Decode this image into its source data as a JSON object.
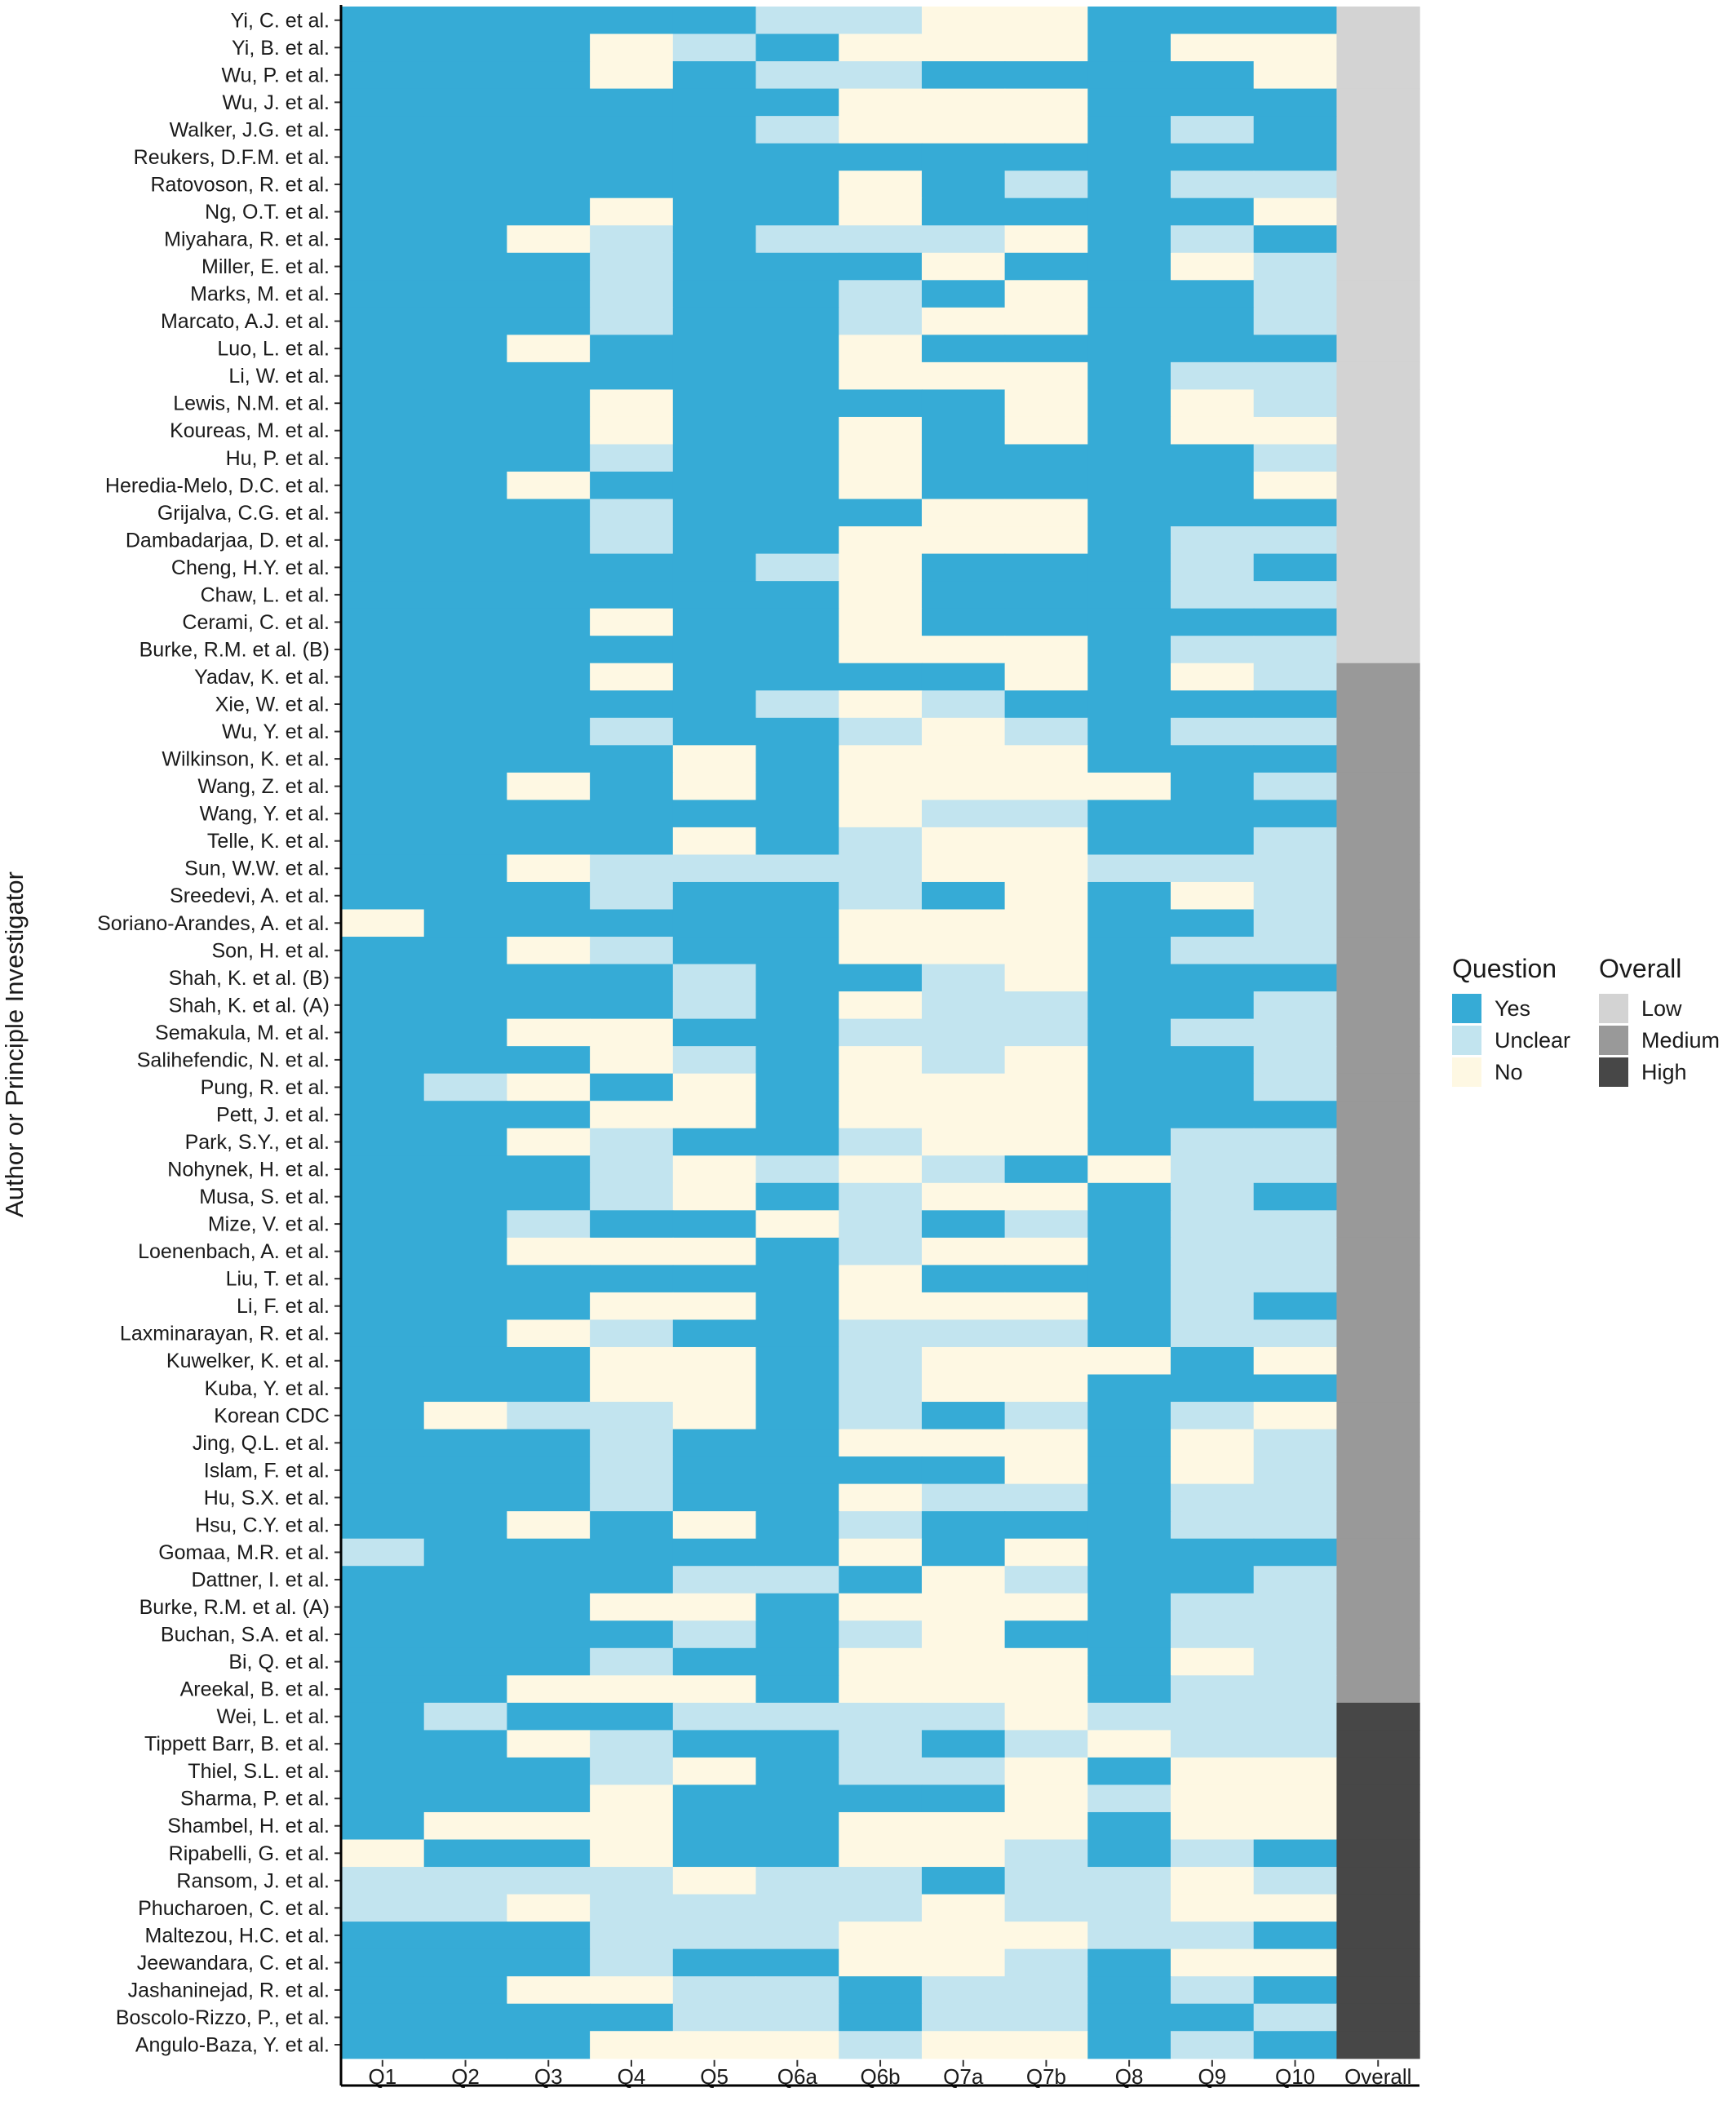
{
  "chart_data": {
    "type": "heatmap",
    "ylabel": "Author or Principle Investigator",
    "columns": [
      "Q1",
      "Q2",
      "Q3",
      "Q4",
      "Q5",
      "Q6a",
      "Q6b",
      "Q7a",
      "Q7b",
      "Q8",
      "Q9",
      "Q10",
      "Overall"
    ],
    "legend": {
      "question_title": "Question",
      "question_levels": [
        {
          "key": "Y",
          "label": "Yes",
          "color": "#36ABD6"
        },
        {
          "key": "U",
          "label": "Unclear",
          "color": "#C2E4EF"
        },
        {
          "key": "N",
          "label": "No",
          "color": "#FEF8E3"
        }
      ],
      "overall_title": "Overall",
      "overall_levels": [
        {
          "key": "L",
          "label": "Low",
          "color": "#D3D3D3"
        },
        {
          "key": "M",
          "label": "Medium",
          "color": "#999999"
        },
        {
          "key": "H",
          "label": "High",
          "color": "#474747"
        }
      ]
    },
    "rows": [
      {
        "label": "Yi, C. et al.",
        "values": "YYYYYUUNNYYY",
        "overall": "L"
      },
      {
        "label": "Yi, B. et al.",
        "values": "YYYNUYNNNYNN",
        "overall": "L"
      },
      {
        "label": "Wu, P. et al.",
        "values": "YYYNYUUYYYYN",
        "overall": "L"
      },
      {
        "label": "Wu, J. et al.",
        "values": "YYYYYYNNNYYY",
        "overall": "L"
      },
      {
        "label": "Walker, J.G. et al.",
        "values": "YYYYYUNNNYUY",
        "overall": "L"
      },
      {
        "label": "Reukers, D.F.M. et al.",
        "values": "YYYYYYYYYYYY",
        "overall": "L"
      },
      {
        "label": "Ratovoson, R. et al.",
        "values": "YYYYYYNYUYUU",
        "overall": "L"
      },
      {
        "label": "Ng, O.T. et al.",
        "values": "YYYNYYNYYYYN",
        "overall": "L"
      },
      {
        "label": "Miyahara, R. et al.",
        "values": "YYNUYUUUNYUY",
        "overall": "L"
      },
      {
        "label": "Miller, E. et al.",
        "values": "YYYUYYYNYYNU",
        "overall": "L"
      },
      {
        "label": "Marks, M. et al.",
        "values": "YYYUYYUYNYYU",
        "overall": "L"
      },
      {
        "label": "Marcato, A.J. et al.",
        "values": "YYYUYYUNNYYU",
        "overall": "L"
      },
      {
        "label": "Luo, L. et al.",
        "values": "YYNYYYNYYYYY",
        "overall": "L"
      },
      {
        "label": "Li, W. et al.",
        "values": "YYYYYYNNNYUU",
        "overall": "L"
      },
      {
        "label": "Lewis, N.M. et al.",
        "values": "YYYNYYYYNYNU",
        "overall": "L"
      },
      {
        "label": "Koureas, M. et al.",
        "values": "YYYNYYNYNYNN",
        "overall": "L"
      },
      {
        "label": "Hu, P. et al.",
        "values": "YYYUYYNYYYYU",
        "overall": "L"
      },
      {
        "label": "Heredia-Melo, D.C. et al.",
        "values": "YYNYYYNYYYYN",
        "overall": "L"
      },
      {
        "label": "Grijalva, C.G. et al.",
        "values": "YYYUYYYNNYYY",
        "overall": "L"
      },
      {
        "label": "Dambadarjaa, D. et al.",
        "values": "YYYUYYNNNYUU",
        "overall": "L"
      },
      {
        "label": "Cheng, H.Y. et al.",
        "values": "YYYYYUNYYYUY",
        "overall": "L"
      },
      {
        "label": "Chaw, L. et al.",
        "values": "YYYYYYNYYYUU",
        "overall": "L"
      },
      {
        "label": "Cerami, C. et al.",
        "values": "YYYNYYNYYYYY",
        "overall": "L"
      },
      {
        "label": "Burke, R.M. et al. (B)",
        "values": "YYYYYYNNNYUU",
        "overall": "L"
      },
      {
        "label": "Yadav, K. et al.",
        "values": "YYYNYYYYNYNU",
        "overall": "M"
      },
      {
        "label": "Xie, W. et al.",
        "values": "YYYYYUNUYYYY",
        "overall": "M"
      },
      {
        "label": "Wu, Y. et al.",
        "values": "YYYUYYUNUYUU",
        "overall": "M"
      },
      {
        "label": "Wilkinson, K. et al.",
        "values": "YYYYNYNNNYYY",
        "overall": "M"
      },
      {
        "label": "Wang, Z. et al.",
        "values": "YYNYNYNNNNYU",
        "overall": "M"
      },
      {
        "label": "Wang, Y. et al.",
        "values": "YYYYYYNUUYYY",
        "overall": "M"
      },
      {
        "label": "Telle, K. et al.",
        "values": "YYYYNYUNNYYU",
        "overall": "M"
      },
      {
        "label": "Sun, W.W. et al.",
        "values": "YYNUUUUNNUUU",
        "overall": "M"
      },
      {
        "label": "Sreedevi, A. et al.",
        "values": "YYYUYYUYNYNU",
        "overall": "M"
      },
      {
        "label": "Soriano-Arandes, A. et al.",
        "values": "NYYYYYNNNYYU",
        "overall": "M"
      },
      {
        "label": "Son, H. et al.",
        "values": "YYNUYYNNNYUU",
        "overall": "M"
      },
      {
        "label": "Shah, K. et al. (B)",
        "values": "YYYYUYYUNYYY",
        "overall": "M"
      },
      {
        "label": "Shah, K. et al. (A)",
        "values": "YYYYUYNUUYYU",
        "overall": "M"
      },
      {
        "label": "Semakula, M. et al.",
        "values": "YYNNYYUUUYUU",
        "overall": "M"
      },
      {
        "label": "Salihefendic, N. et al.",
        "values": "YYYNUYNUNYYU",
        "overall": "M"
      },
      {
        "label": "Pung, R. et al.",
        "values": "YUNYNYNNNYYU",
        "overall": "M"
      },
      {
        "label": "Pett, J. et al.",
        "values": "YYYNNYNNNYYY",
        "overall": "M"
      },
      {
        "label": "Park, S.Y., et al.",
        "values": "YYNUYYUNNYUU",
        "overall": "M"
      },
      {
        "label": "Nohynek, H. et al.",
        "values": "YYYUNUNUYNUU",
        "overall": "M"
      },
      {
        "label": "Musa, S. et al.",
        "values": "YYYUNYUNNYUY",
        "overall": "M"
      },
      {
        "label": "Mize, V. et al.",
        "values": "YYUYYNUYUYUU",
        "overall": "M"
      },
      {
        "label": "Loenenbach, A. et al.",
        "values": "YYNNNYUNNYUU",
        "overall": "M"
      },
      {
        "label": "Liu, T. et al.",
        "values": "YYYYYYNYYYUU",
        "overall": "M"
      },
      {
        "label": "Li, F. et al.",
        "values": "YYYNNYNNNYUY",
        "overall": "M"
      },
      {
        "label": "Laxminarayan, R. et al.",
        "values": "YYNUYYUUUYUU",
        "overall": "M"
      },
      {
        "label": "Kuwelker, K. et al.",
        "values": "YYYNNYUNNNYN",
        "overall": "M"
      },
      {
        "label": "Kuba, Y. et al.",
        "values": "YYYNNYUNNYYY",
        "overall": "M"
      },
      {
        "label": "Korean CDC",
        "values": "YNUUNYUYUYUN",
        "overall": "M"
      },
      {
        "label": "Jing, Q.L. et al.",
        "values": "YYYUYYNNNYNU",
        "overall": "M"
      },
      {
        "label": "Islam, F. et al.",
        "values": "YYYUYYYYNYNU",
        "overall": "M"
      },
      {
        "label": "Hu, S.X. et al.",
        "values": "YYYUYYNUUYUU",
        "overall": "M"
      },
      {
        "label": "Hsu, C.Y. et al.",
        "values": "YYNYNYUYYYUU",
        "overall": "M"
      },
      {
        "label": "Gomaa, M.R. et al.",
        "values": "UYYYYYNYNYYY",
        "overall": "M"
      },
      {
        "label": "Dattner, I. et al.",
        "values": "YYYYUUYNUYYU",
        "overall": "M"
      },
      {
        "label": "Burke, R.M. et al. (A)",
        "values": "YYYNNYNNNYUU",
        "overall": "M"
      },
      {
        "label": "Buchan, S.A. et al.",
        "values": "YYYYUYUNYYUU",
        "overall": "M"
      },
      {
        "label": "Bi, Q. et al.",
        "values": "YYYUYYNNNYNU",
        "overall": "M"
      },
      {
        "label": "Areekal, B. et al.",
        "values": "YYNNNYNNNYUU",
        "overall": "M"
      },
      {
        "label": "Wei, L. et al.",
        "values": "YUYYUUUUNUUU",
        "overall": "H"
      },
      {
        "label": "Tippett Barr, B. et al.",
        "values": "YYNUYYUYUNUU",
        "overall": "H"
      },
      {
        "label": "Thiel, S.L. et al.",
        "values": "YYYUNYUUNYNN",
        "overall": "H"
      },
      {
        "label": "Sharma, P. et al.",
        "values": "YYYNYYYYNUNN",
        "overall": "H"
      },
      {
        "label": "Shambel, H. et al.",
        "values": "YNNNYYNNNYNN",
        "overall": "H"
      },
      {
        "label": "Ripabelli, G. et al.",
        "values": "NYYNYYNNUYUY",
        "overall": "H"
      },
      {
        "label": "Ransom, J. et al.",
        "values": "UUUUNUUYUUNU",
        "overall": "H"
      },
      {
        "label": "Phucharoen, C. et al.",
        "values": "UUNUUUUNUUNN",
        "overall": "H"
      },
      {
        "label": "Maltezou, H.C. et al.",
        "values": "YYYUUUNNNUUY",
        "overall": "H"
      },
      {
        "label": "Jeewandara, C. et al.",
        "values": "YYYUYYNNUYNN",
        "overall": "H"
      },
      {
        "label": "Jashaninejad, R. et al.",
        "values": "YYNNUUYUUYUY",
        "overall": "H"
      },
      {
        "label": "Boscolo-Rizzo, P., et al.",
        "values": "YYYYUUYUUYYU",
        "overall": "H"
      },
      {
        "label": "Angulo-Baza, Y. et al.",
        "values": "YYYNNNUNNYUY",
        "overall": "H"
      }
    ]
  }
}
